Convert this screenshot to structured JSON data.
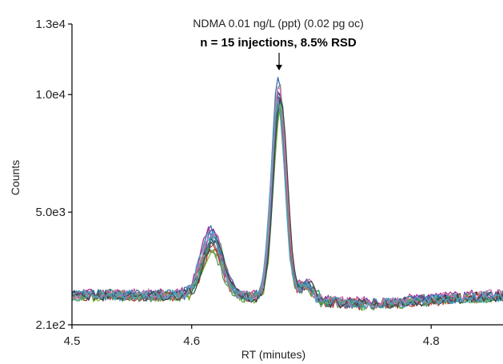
{
  "chart_data": {
    "type": "line",
    "title": "",
    "xlabel": "RT (minutes)",
    "ylabel": "Counts",
    "xlim": [
      4.5,
      4.86
    ],
    "ylim": [
      210,
      13000
    ],
    "x_ticks": [
      {
        "value": 4.5,
        "label": "4.5"
      },
      {
        "value": 4.6,
        "label": "4.6"
      },
      {
        "value": 4.8,
        "label": "4.8"
      }
    ],
    "y_ticks": [
      {
        "value": 210,
        "label": "2.1e2"
      },
      {
        "value": 5000,
        "label": "5.0e3"
      },
      {
        "value": 10000,
        "label": "1.0e4"
      },
      {
        "value": 13000,
        "label": "1.3e4"
      }
    ],
    "annotation": {
      "line1": "NDMA 0.01 ng/L (ppt) (0.02 pg oc)",
      "line2": "n = 15 injections, 8.5% RSD",
      "arrow_target_x": 4.673
    },
    "grid": false,
    "legend": "none",
    "series": [
      {
        "color": "#1f1f1f",
        "baseline": 1450,
        "peak1": 3900,
        "peak2": 10300,
        "shift": 0.0
      },
      {
        "color": "#9c2a2a",
        "baseline": 1420,
        "peak1": 3500,
        "peak2": 10100,
        "shift": 0.001
      },
      {
        "color": "#3a6fb0",
        "baseline": 1480,
        "peak1": 4300,
        "peak2": 10800,
        "shift": -0.001
      },
      {
        "color": "#1a9a5c",
        "baseline": 1500,
        "peak1": 4000,
        "peak2": 9800,
        "shift": 0.0015
      },
      {
        "color": "#b6308f",
        "baseline": 1550,
        "peak1": 4200,
        "peak2": 10000,
        "shift": -0.0015
      },
      {
        "color": "#7ab83a",
        "baseline": 1400,
        "peak1": 3300,
        "peak2": 9600,
        "shift": 0.002
      },
      {
        "color": "#29b6d8",
        "baseline": 1430,
        "peak1": 4100,
        "peak2": 9500,
        "shift": 0.0005
      },
      {
        "color": "#8a8a8a",
        "baseline": 1460,
        "peak1": 3800,
        "peak2": 10600,
        "shift": -0.0005
      },
      {
        "color": "#5b4aa8",
        "baseline": 1490,
        "peak1": 4250,
        "peak2": 10400,
        "shift": 0.0008
      },
      {
        "color": "#c24a4a",
        "baseline": 1440,
        "peak1": 3650,
        "peak2": 9900,
        "shift": -0.0008
      },
      {
        "color": "#2c7d9a",
        "baseline": 1470,
        "peak1": 3950,
        "peak2": 10200,
        "shift": 0.0012
      },
      {
        "color": "#5aa05a",
        "baseline": 1410,
        "peak1": 3400,
        "peak2": 9700,
        "shift": -0.0012
      },
      {
        "color": "#d07ab0",
        "baseline": 1520,
        "peak1": 4150,
        "peak2": 10500,
        "shift": 0.0003
      },
      {
        "color": "#444444",
        "baseline": 1440,
        "peak1": 3750,
        "peak2": 10000,
        "shift": 0.0018
      },
      {
        "color": "#4fa0c8",
        "baseline": 1460,
        "peak1": 4050,
        "peak2": 9800,
        "shift": -0.0018
      }
    ]
  }
}
